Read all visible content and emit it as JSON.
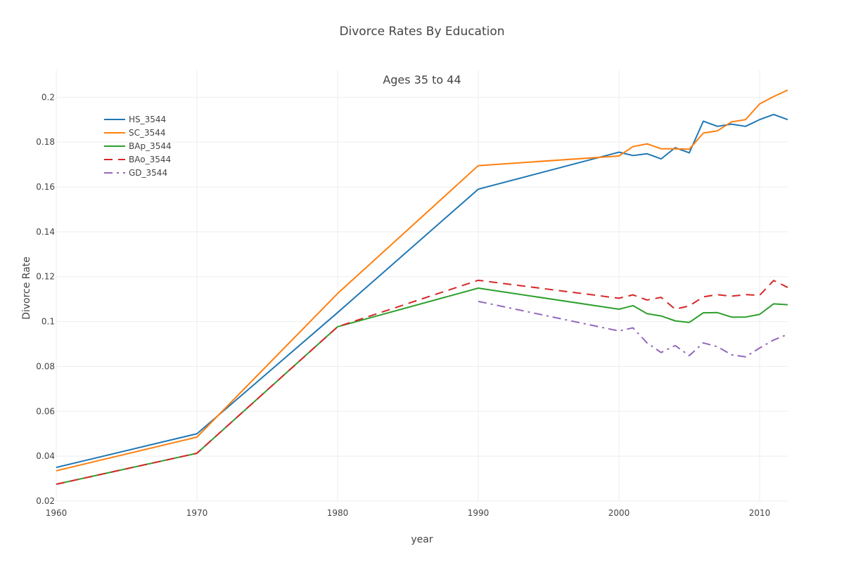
{
  "chart_data": {
    "type": "line",
    "title": "Divorce Rates By Education",
    "subtitle": "Ages 35 to 44",
    "xlabel": "year",
    "ylabel": "Divorce Rate",
    "xlim": [
      1960,
      2012
    ],
    "ylim": [
      0.02,
      0.212
    ],
    "x_ticks": [
      1960,
      1970,
      1980,
      1990,
      2000,
      2010
    ],
    "x_tick_labels": [
      "1960",
      "1970",
      "1980",
      "1990",
      "2000",
      "2010"
    ],
    "y_ticks": [
      0.02,
      0.04,
      0.06,
      0.08,
      0.1,
      0.12,
      0.14,
      0.16,
      0.18,
      0.2
    ],
    "y_tick_labels": [
      "0.02",
      "0.04",
      "0.06",
      "0.08",
      "0.1",
      "0.12",
      "0.14",
      "0.16",
      "0.18",
      "0.2"
    ],
    "grid": true,
    "legend_position": "top-left",
    "series": [
      {
        "name": "HS_3544",
        "color": "#1f77b4",
        "dash": "solid",
        "x": [
          1960,
          1970,
          1980,
          1990,
          2000,
          2001,
          2002,
          2003,
          2004,
          2005,
          2006,
          2007,
          2008,
          2009,
          2010,
          2011,
          2012
        ],
        "y": [
          0.035,
          0.05,
          0.104,
          0.159,
          0.1755,
          0.174,
          0.1748,
          0.1725,
          0.1775,
          0.1752,
          0.1893,
          0.187,
          0.188,
          0.187,
          0.19,
          0.1923,
          0.19
        ]
      },
      {
        "name": "SC_3544",
        "color": "#ff7f0e",
        "dash": "solid",
        "x": [
          1960,
          1970,
          1980,
          1990,
          2000,
          2001,
          2002,
          2003,
          2004,
          2005,
          2006,
          2007,
          2008,
          2009,
          2010,
          2011,
          2012
        ],
        "y": [
          0.0335,
          0.0485,
          0.1125,
          0.1695,
          0.1738,
          0.178,
          0.1792,
          0.177,
          0.177,
          0.1768,
          0.184,
          0.185,
          0.189,
          0.19,
          0.197,
          0.2003,
          0.2032
        ]
      },
      {
        "name": "BAp_3544",
        "color": "#2ca02c",
        "dash": "solid",
        "x": [
          1960,
          1970,
          1980,
          1990,
          2000,
          2001,
          2002,
          2003,
          2004,
          2005,
          2006,
          2007,
          2008,
          2009,
          2010,
          2011,
          2012
        ],
        "y": [
          0.0275,
          0.0413,
          0.0977,
          0.1149,
          0.1055,
          0.1071,
          0.1035,
          0.1025,
          0.1003,
          0.0996,
          0.1039,
          0.104,
          0.102,
          0.102,
          0.1032,
          0.1079,
          0.1075
        ]
      },
      {
        "name": "BAo_3544",
        "color": "#d62728",
        "dash": "dash",
        "x": [
          1960,
          1970,
          1980,
          1990,
          2000,
          2001,
          2002,
          2003,
          2004,
          2005,
          2006,
          2007,
          2008,
          2009,
          2010,
          2011,
          2012
        ],
        "y": [
          0.0275,
          0.0413,
          0.0977,
          0.1184,
          0.1104,
          0.1119,
          0.1096,
          0.1108,
          0.1055,
          0.107,
          0.111,
          0.112,
          0.1113,
          0.112,
          0.1117,
          0.1183,
          0.1152
        ]
      },
      {
        "name": "GD_3544",
        "color": "#9467bd",
        "dash": "dashdot",
        "x": [
          1990,
          2000,
          2001,
          2002,
          2003,
          2004,
          2005,
          2006,
          2007,
          2008,
          2009,
          2010,
          2011,
          2012
        ],
        "y": [
          0.109,
          0.0958,
          0.0972,
          0.0905,
          0.0862,
          0.0893,
          0.0848,
          0.0905,
          0.0888,
          0.0852,
          0.0843,
          0.0882,
          0.0918,
          0.0943
        ]
      }
    ]
  }
}
